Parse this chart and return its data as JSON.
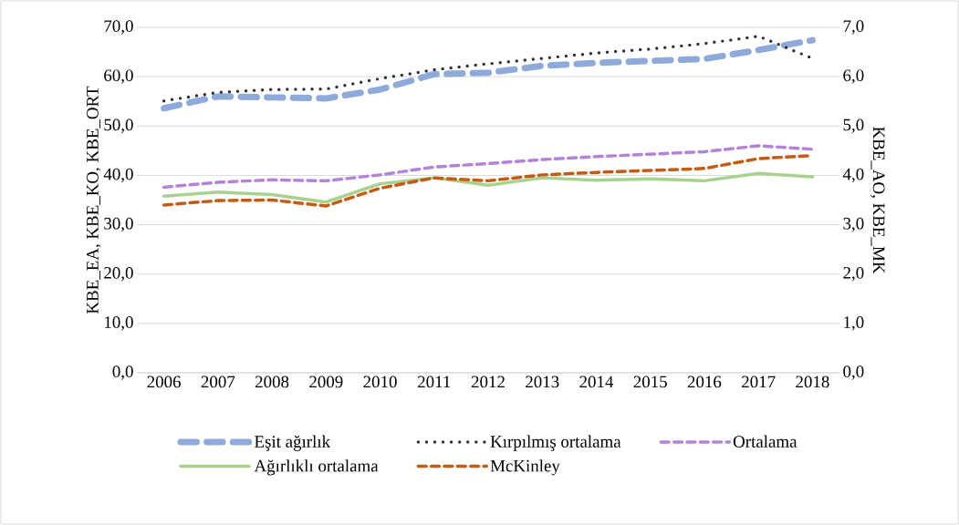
{
  "chart_data": {
    "type": "line",
    "categories": [
      "2006",
      "2007",
      "2008",
      "2009",
      "2010",
      "2011",
      "2012",
      "2013",
      "2014",
      "2015",
      "2016",
      "2017",
      "2018"
    ],
    "ylabel": "KBE_EA, KBE_KO, KBE_ORT",
    "y2label": "KBE_AO, KBE_MK",
    "ylim": [
      0,
      70
    ],
    "yticks": [
      {
        "value": 0,
        "label": "0,0"
      },
      {
        "value": 10,
        "label": "10,0"
      },
      {
        "value": 20,
        "label": "20,0"
      },
      {
        "value": 30,
        "label": "30,0"
      },
      {
        "value": 40,
        "label": "40,0"
      },
      {
        "value": 50,
        "label": "50,0"
      },
      {
        "value": 60,
        "label": "60,0"
      },
      {
        "value": 70,
        "label": "70,0"
      }
    ],
    "y2lim": [
      0,
      7
    ],
    "y2ticks": [
      {
        "value": 0,
        "label": "0,0"
      },
      {
        "value": 1,
        "label": "1,0"
      },
      {
        "value": 2,
        "label": "2,0"
      },
      {
        "value": 3,
        "label": "3,0"
      },
      {
        "value": 4,
        "label": "4,0"
      },
      {
        "value": 5,
        "label": "5,0"
      },
      {
        "value": 6,
        "label": "6,0"
      },
      {
        "value": 7,
        "label": "7,0"
      }
    ],
    "grid": "y",
    "legend": "bottom",
    "marker": "none",
    "series": [
      {
        "name": "Eşit ağırlık",
        "color": "#8eaadb",
        "line_style": "dashed",
        "values": [
          53.6,
          56.0,
          55.8,
          55.6,
          57.4,
          60.5,
          60.8,
          62.2,
          62.8,
          63.2,
          63.6,
          65.4,
          67.4
        ]
      },
      {
        "name": "Kırpılmış ortalama",
        "color": "#333333",
        "line_style": "dotted",
        "values": [
          55.1,
          56.8,
          57.4,
          57.5,
          59.6,
          61.4,
          62.6,
          63.7,
          64.8,
          65.6,
          66.7,
          68.2,
          63.7
        ]
      },
      {
        "name": "Ortalama",
        "color": "#b482da",
        "line_style": "dashed",
        "values": [
          37.6,
          38.6,
          39.1,
          38.9,
          40.1,
          41.7,
          42.4,
          43.2,
          43.8,
          44.3,
          44.8,
          46.0,
          45.3
        ]
      },
      {
        "name": "Ağırlıklı ortalama",
        "color": "#a9d18e",
        "line_style": "solid",
        "axis": "y2",
        "values": [
          3.58,
          3.66,
          3.61,
          3.46,
          3.83,
          3.95,
          3.8,
          3.95,
          3.9,
          3.93,
          3.89,
          4.04,
          3.97
        ]
      },
      {
        "name": "McKinley",
        "color": "#c55a11",
        "line_style": "dashed",
        "axis": "y2",
        "values": [
          3.4,
          3.49,
          3.5,
          3.38,
          3.74,
          3.95,
          3.89,
          4.01,
          4.06,
          4.1,
          4.14,
          4.34,
          4.4
        ]
      }
    ]
  }
}
